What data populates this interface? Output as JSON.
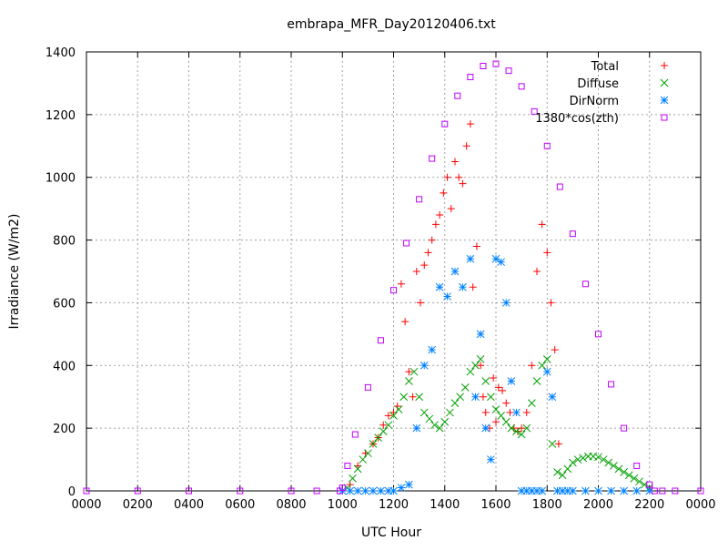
{
  "chart_data": {
    "type": "scatter",
    "title": "embrapa_MFR_Day20120406.txt",
    "xlabel": "UTC Hour",
    "ylabel": "Irradiance (W/m2)",
    "xlim": [
      0,
      24
    ],
    "ylim": [
      0,
      1400
    ],
    "grid": true,
    "legend_position": "top-right",
    "x_tick_labels": [
      "0000",
      "0200",
      "0400",
      "0600",
      "0800",
      "1000",
      "1200",
      "1400",
      "1600",
      "1800",
      "2000",
      "2200",
      "0000"
    ],
    "y_ticks": [
      0,
      200,
      400,
      600,
      800,
      1000,
      1200,
      1400
    ],
    "series": [
      {
        "name": "Total",
        "marker": "plus",
        "color": "#ff0000",
        "x": [
          10.3,
          10.6,
          10.9,
          11.2,
          11.4,
          11.6,
          11.8,
          12.0,
          12.15,
          12.3,
          12.45,
          12.6,
          12.75,
          12.9,
          13.05,
          13.2,
          13.35,
          13.5,
          13.65,
          13.8,
          13.95,
          14.1,
          14.25,
          14.4,
          14.55,
          14.7,
          14.85,
          15.0,
          15.1,
          15.25,
          15.4,
          15.5,
          15.6,
          15.75,
          15.9,
          16.0,
          16.1,
          16.25,
          16.4,
          16.55,
          16.7,
          16.85,
          17.0,
          17.2,
          17.4,
          17.6,
          17.8,
          18.0,
          18.15,
          18.3,
          18.45
        ],
        "y": [
          20,
          80,
          120,
          150,
          170,
          210,
          240,
          250,
          270,
          660,
          540,
          380,
          300,
          700,
          600,
          720,
          760,
          800,
          850,
          880,
          950,
          1000,
          900,
          1050,
          1000,
          980,
          1100,
          1170,
          650,
          780,
          400,
          300,
          250,
          200,
          360,
          220,
          330,
          320,
          280,
          250,
          200,
          190,
          200,
          250,
          400,
          700,
          850,
          760,
          600,
          450,
          150
        ]
      },
      {
        "name": "Diffuse",
        "marker": "cross",
        "color": "#00a000",
        "x": [
          10.2,
          10.4,
          10.6,
          10.8,
          11.0,
          11.2,
          11.4,
          11.6,
          11.8,
          12.0,
          12.2,
          12.4,
          12.6,
          12.8,
          13.0,
          13.2,
          13.4,
          13.6,
          13.8,
          14.0,
          14.2,
          14.4,
          14.6,
          14.8,
          15.0,
          15.2,
          15.4,
          15.6,
          15.8,
          16.0,
          16.2,
          16.4,
          16.6,
          16.8,
          17.0,
          17.2,
          17.4,
          17.6,
          17.8,
          18.0,
          18.2,
          18.4,
          18.6,
          18.8,
          19.0,
          19.2,
          19.4,
          19.6,
          19.8,
          20.0,
          20.2,
          20.4,
          20.6,
          20.8,
          21.0,
          21.2,
          21.4,
          21.6,
          21.8,
          22.0
        ],
        "y": [
          10,
          40,
          70,
          100,
          120,
          150,
          170,
          190,
          210,
          240,
          260,
          300,
          350,
          380,
          300,
          250,
          230,
          210,
          200,
          220,
          250,
          280,
          300,
          330,
          380,
          400,
          420,
          350,
          300,
          260,
          240,
          220,
          200,
          190,
          180,
          200,
          280,
          350,
          400,
          420,
          150,
          60,
          50,
          70,
          90,
          100,
          105,
          110,
          110,
          108,
          100,
          90,
          80,
          70,
          60,
          50,
          40,
          30,
          20,
          10
        ]
      },
      {
        "name": "DirNorm",
        "marker": "star",
        "color": "#0080ff",
        "x": [
          10.0,
          10.3,
          10.6,
          10.9,
          11.2,
          11.5,
          11.8,
          12.0,
          12.3,
          12.6,
          12.9,
          13.2,
          13.5,
          13.8,
          14.1,
          14.4,
          14.7,
          15.0,
          15.2,
          15.4,
          15.6,
          15.8,
          16.0,
          16.2,
          16.4,
          16.6,
          16.8,
          17.0,
          17.2,
          17.4,
          17.6,
          17.8,
          18.0,
          18.2,
          18.4,
          18.6,
          18.8,
          19.0,
          19.5,
          20.0,
          20.5,
          21.0,
          21.5,
          22.0
        ],
        "y": [
          0,
          0,
          0,
          0,
          0,
          0,
          0,
          0,
          10,
          20,
          200,
          400,
          450,
          650,
          620,
          700,
          650,
          740,
          300,
          500,
          200,
          100,
          740,
          730,
          600,
          350,
          250,
          0,
          0,
          0,
          0,
          0,
          380,
          300,
          0,
          0,
          0,
          0,
          0,
          0,
          0,
          0,
          0,
          0
        ]
      },
      {
        "name": "1380*cos(zth)",
        "marker": "square",
        "color": "#c000ff",
        "x": [
          0,
          2,
          4,
          6,
          8,
          9,
          9.9,
          10.0,
          10.2,
          10.5,
          11.0,
          11.5,
          12.0,
          12.5,
          13.0,
          13.5,
          14.0,
          14.5,
          15.0,
          15.5,
          16.0,
          16.5,
          17.0,
          17.5,
          18.0,
          18.5,
          19.0,
          19.5,
          20.0,
          20.5,
          21.0,
          21.5,
          22.0,
          22.2,
          22.5,
          23,
          24
        ],
        "y": [
          0,
          0,
          0,
          0,
          0,
          0,
          0,
          10,
          80,
          180,
          330,
          480,
          640,
          790,
          930,
          1060,
          1170,
          1260,
          1320,
          1355,
          1362,
          1340,
          1290,
          1210,
          1100,
          970,
          820,
          660,
          500,
          340,
          200,
          80,
          20,
          0,
          0,
          0,
          0
        ]
      }
    ]
  }
}
